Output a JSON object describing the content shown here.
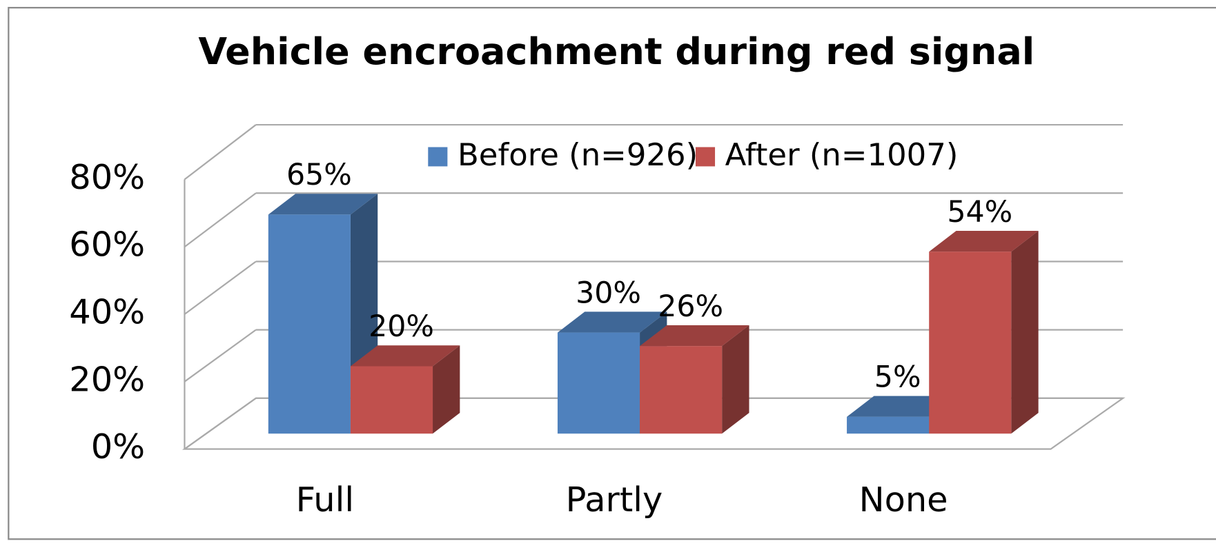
{
  "chart_data": {
    "type": "bar3d",
    "title": "Vehicle encroachment during red signal",
    "categories": [
      "Full",
      "Partly",
      "None"
    ],
    "series": [
      {
        "name": "Before (n=926)",
        "color": "#4f81bd",
        "values": [
          65,
          30,
          5
        ],
        "value_labels": [
          "65%",
          "30%",
          "5%"
        ]
      },
      {
        "name": "After (n=1007)",
        "color": "#c0504d",
        "values": [
          20,
          26,
          54
        ],
        "value_labels": [
          "20%",
          "26%",
          "54%"
        ]
      }
    ],
    "ylim": [
      0,
      80
    ],
    "yticks": [
      {
        "value": 0,
        "label": "0%"
      },
      {
        "value": 20,
        "label": "20%"
      },
      {
        "value": 40,
        "label": "40%"
      },
      {
        "value": 60,
        "label": "60%"
      },
      {
        "value": 80,
        "label": "80%"
      }
    ],
    "grid": true,
    "legend": "top"
  }
}
